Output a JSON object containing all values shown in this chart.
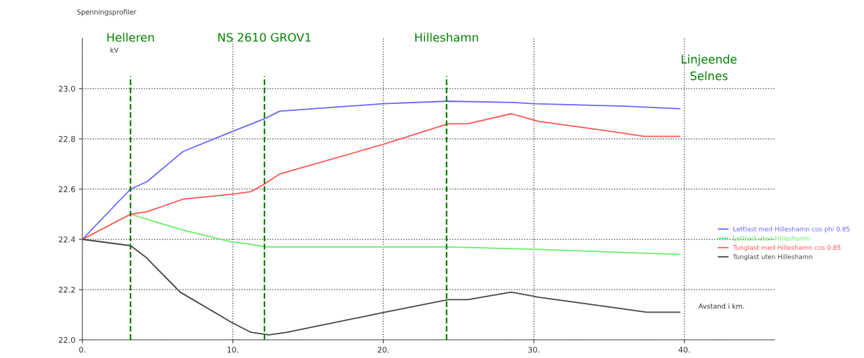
{
  "chart_data": {
    "type": "line",
    "title": "Spenningsprofiler",
    "ylabel": "kV",
    "xlabel": "Avstand i km.",
    "xlim": [
      0,
      46
    ],
    "ylim": [
      22.0,
      23.2
    ],
    "xticks": [
      {
        "value": 0,
        "label": "0."
      },
      {
        "value": 10,
        "label": "10."
      },
      {
        "value": 20,
        "label": "20."
      },
      {
        "value": 30,
        "label": "30."
      },
      {
        "value": 40,
        "label": "40."
      }
    ],
    "yticks": [
      {
        "value": 22.0,
        "label": "22.0"
      },
      22.2,
      22.4,
      22.6,
      22.8,
      {
        "value": 23.0,
        "label": "23.0"
      }
    ],
    "grid": true,
    "legend": "right",
    "marker": "none",
    "line_style": "solid",
    "series": [
      {
        "name": "Lettlast med Hilleshamn cos phi 0.85",
        "color": "#6666ff",
        "x": [
          0,
          3.2,
          4.3,
          6.7,
          10,
          12.1,
          13.1,
          20,
          24.3,
          28.7,
          30,
          36,
          39.7
        ],
        "values": [
          22.4,
          22.6,
          22.63,
          22.75,
          22.83,
          22.88,
          22.91,
          22.94,
          22.95,
          22.945,
          22.94,
          22.93,
          22.92
        ]
      },
      {
        "name": "Lettlast uten Hilleshamn",
        "color": "#66ee66",
        "x": [
          0,
          3.2,
          6.5,
          9.9,
          11.2,
          12.2,
          24.3,
          30.3,
          39.7
        ],
        "values": [
          22.4,
          22.5,
          22.44,
          22.39,
          22.38,
          22.37,
          22.37,
          22.36,
          22.34
        ]
      },
      {
        "name": "Tunglast med Hilleshamn cos 0.85",
        "color": "#ff5555",
        "x": [
          0,
          3.2,
          4.3,
          6.7,
          10,
          11.2,
          12.1,
          13.1,
          20.1,
          24.3,
          25.6,
          28.5,
          30.3,
          35.1,
          37.3,
          39.7
        ],
        "values": [
          22.4,
          22.5,
          22.51,
          22.56,
          22.58,
          22.59,
          22.62,
          22.66,
          22.78,
          22.86,
          22.86,
          22.9,
          22.87,
          22.83,
          22.81,
          22.81
        ]
      },
      {
        "name": "Tunglast uten Hilleshamn",
        "color": "#444444",
        "x": [
          0,
          3.2,
          4.2,
          6.5,
          9.9,
          11.2,
          12.4,
          13.6,
          20.1,
          24.3,
          25.6,
          28.5,
          30.3,
          35.1,
          37.5,
          39.7
        ],
        "values": [
          22.4,
          22.375,
          22.33,
          22.19,
          22.07,
          22.03,
          22.02,
          22.03,
          22.11,
          22.16,
          22.16,
          22.19,
          22.17,
          22.13,
          22.11,
          22.11
        ]
      }
    ],
    "ref_lines": [
      {
        "axis": "x",
        "value": 3.2,
        "label": "Helleren",
        "color": "#008000",
        "line_style": "dashed"
      },
      {
        "axis": "x",
        "value": 12.1,
        "label": "NS 2610 GROV1",
        "color": "#008000",
        "line_style": "dashed"
      },
      {
        "axis": "x",
        "value": 24.2,
        "label": "Hilleshamn",
        "color": "#008000",
        "line_style": "dashed"
      }
    ],
    "annotations": [
      "Linjeende\nSelnes"
    ]
  }
}
